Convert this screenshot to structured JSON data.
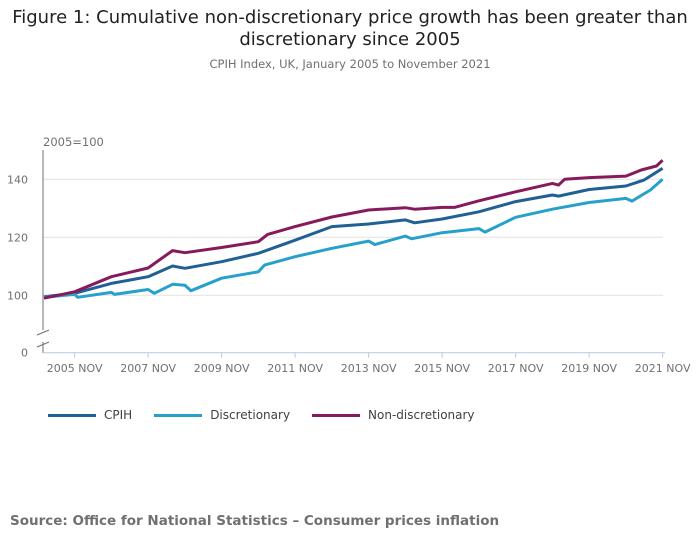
{
  "chart_data": {
    "type": "line",
    "title": "Figure 1: Cumulative non-discretionary price growth has been greater than discretionary since 2005",
    "subtitle": "CPIH Index, UK, January 2005 to November 2021",
    "ylabel": "2005=100",
    "ylim": [
      0,
      150
    ],
    "yticks": [
      "0",
      "100",
      "120",
      "140"
    ],
    "ytick_values": [
      0,
      100,
      120,
      140
    ],
    "axis_break": true,
    "xticks": [
      "2005 NOV",
      "2007 NOV",
      "2009 NOV",
      "2011 NOV",
      "2013 NOV",
      "2015 NOV",
      "2017 NOV",
      "2019 NOV",
      "2021 NOV"
    ],
    "xtick_dates": [
      "2005-11",
      "2007-11",
      "2009-11",
      "2011-11",
      "2013-11",
      "2015-11",
      "2017-11",
      "2019-11",
      "2021-11"
    ],
    "grid": true,
    "legend_position": "bottom-left",
    "series": [
      {
        "name": "CPIH",
        "color": "#206095",
        "points": [
          [
            "2005-01",
            99.5
          ],
          [
            "2005-11",
            100.7
          ],
          [
            "2006-11",
            104.1
          ],
          [
            "2007-11",
            106.4
          ],
          [
            "2008-07",
            110.1
          ],
          [
            "2008-11",
            109.3
          ],
          [
            "2009-11",
            111.6
          ],
          [
            "2010-11",
            114.5
          ],
          [
            "2011-11",
            119.0
          ],
          [
            "2012-11",
            123.7
          ],
          [
            "2013-11",
            124.6
          ],
          [
            "2014-11",
            126.0
          ],
          [
            "2015-02",
            125.0
          ],
          [
            "2015-11",
            126.3
          ],
          [
            "2016-11",
            128.8
          ],
          [
            "2017-11",
            132.3
          ],
          [
            "2018-11",
            134.6
          ],
          [
            "2019-01",
            134.2
          ],
          [
            "2019-11",
            136.5
          ],
          [
            "2020-11",
            137.7
          ],
          [
            "2021-05",
            139.8
          ],
          [
            "2021-11",
            143.8
          ]
        ]
      },
      {
        "name": "Discretionary",
        "color": "#27a0cc",
        "points": [
          [
            "2005-01",
            99.3
          ],
          [
            "2005-11",
            100.3
          ],
          [
            "2005-12",
            99.3
          ],
          [
            "2006-11",
            101.0
          ],
          [
            "2006-12",
            100.3
          ],
          [
            "2007-11",
            102.0
          ],
          [
            "2008-01",
            100.7
          ],
          [
            "2008-07",
            103.8
          ],
          [
            "2008-11",
            103.5
          ],
          [
            "2009-01",
            101.6
          ],
          [
            "2009-11",
            105.9
          ],
          [
            "2010-11",
            108.1
          ],
          [
            "2011-01",
            110.4
          ],
          [
            "2011-11",
            113.3
          ],
          [
            "2012-11",
            116.2
          ],
          [
            "2013-11",
            118.7
          ],
          [
            "2014-01",
            117.5
          ],
          [
            "2014-11",
            120.4
          ],
          [
            "2015-01",
            119.5
          ],
          [
            "2015-11",
            121.6
          ],
          [
            "2016-11",
            123.0
          ],
          [
            "2017-01",
            121.8
          ],
          [
            "2017-11",
            126.9
          ],
          [
            "2018-11",
            129.7
          ],
          [
            "2019-11",
            132.0
          ],
          [
            "2020-11",
            133.4
          ],
          [
            "2021-01",
            132.5
          ],
          [
            "2021-07",
            136.3
          ],
          [
            "2021-11",
            140.0
          ]
        ]
      },
      {
        "name": "Non-discretionary",
        "color": "#871a5b",
        "points": [
          [
            "2005-01",
            99.0
          ],
          [
            "2005-11",
            101.2
          ],
          [
            "2006-11",
            106.4
          ],
          [
            "2007-11",
            109.4
          ],
          [
            "2008-07",
            115.4
          ],
          [
            "2008-11",
            114.7
          ],
          [
            "2009-11",
            116.5
          ],
          [
            "2010-11",
            118.5
          ],
          [
            "2011-02",
            121.0
          ],
          [
            "2011-11",
            123.7
          ],
          [
            "2012-11",
            127.0
          ],
          [
            "2013-11",
            129.4
          ],
          [
            "2014-11",
            130.2
          ],
          [
            "2015-02",
            129.7
          ],
          [
            "2015-11",
            130.3
          ],
          [
            "2016-03",
            130.3
          ],
          [
            "2016-11",
            132.6
          ],
          [
            "2017-11",
            135.7
          ],
          [
            "2018-11",
            138.6
          ],
          [
            "2019-01",
            138.0
          ],
          [
            "2019-03",
            140.0
          ],
          [
            "2019-11",
            140.6
          ],
          [
            "2020-11",
            141.1
          ],
          [
            "2021-04",
            143.2
          ],
          [
            "2021-09",
            144.6
          ],
          [
            "2021-11",
            146.6
          ]
        ]
      }
    ]
  },
  "source": "Source: Office for National Statistics – Consumer prices inflation"
}
